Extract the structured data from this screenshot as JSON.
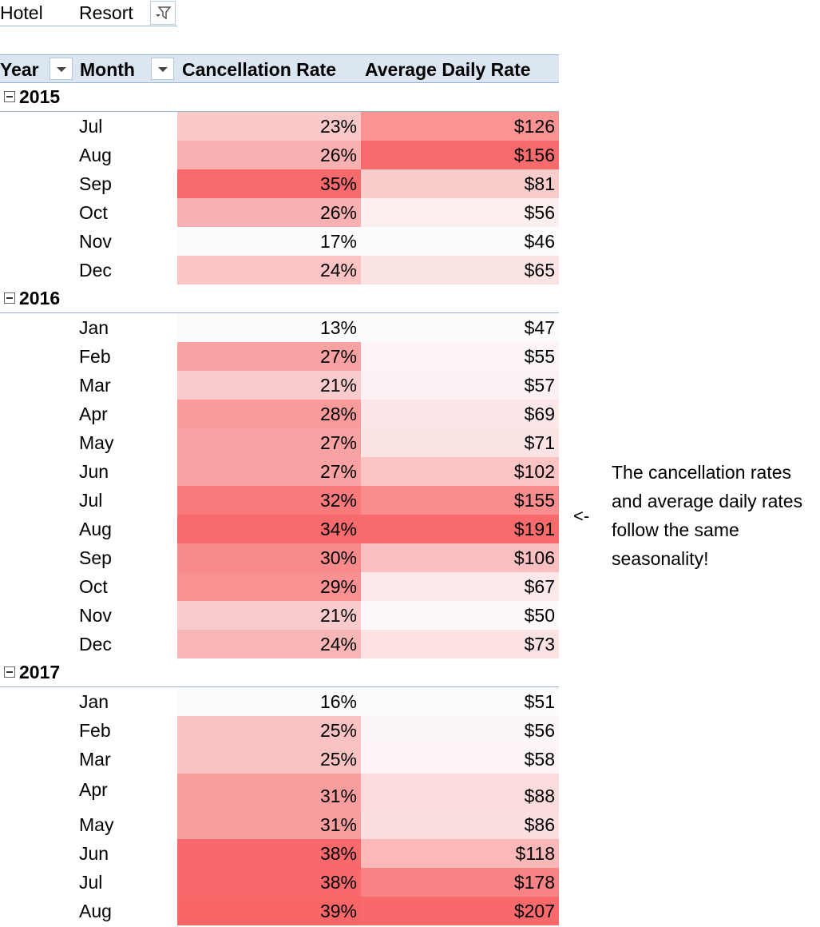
{
  "filter": {
    "field_label": "Hotel",
    "selected_value": "Resort"
  },
  "headers": {
    "year": "Year",
    "month": "Month",
    "cancellation_rate": "Cancellation Rate",
    "average_daily_rate": "Average Daily Rate"
  },
  "years": [
    {
      "year": "2015",
      "rows": [
        {
          "month": "Jul",
          "rate": "23%",
          "adr": "$126",
          "rate_bg": "#f9c9c9",
          "adr_bg": "#fa9393"
        },
        {
          "month": "Aug",
          "rate": "26%",
          "adr": "$156",
          "rate_bg": "#f9b0b1",
          "adr_bg": "#f86b6c"
        },
        {
          "month": "Sep",
          "rate": "35%",
          "adr": "$81",
          "rate_bg": "#f86b6d",
          "adr_bg": "#facdcd"
        },
        {
          "month": "Oct",
          "rate": "26%",
          "adr": "$56",
          "rate_bg": "#f9b0b1",
          "adr_bg": "#fcefef"
        },
        {
          "month": "Nov",
          "rate": "17%",
          "adr": "$46",
          "rate_bg": "#fcfcff",
          "adr_bg": "#fcfcff"
        },
        {
          "month": "Dec",
          "rate": "24%",
          "adr": "$65",
          "rate_bg": "#fac3c4",
          "adr_bg": "#fce4e5"
        }
      ]
    },
    {
      "year": "2016",
      "rows": [
        {
          "month": "Jan",
          "rate": "13%",
          "adr": "$47",
          "rate_bg": "#fcfcff",
          "adr_bg": "#fcfcff"
        },
        {
          "month": "Feb",
          "rate": "27%",
          "adr": "$55",
          "rate_bg": "#f9a2a3",
          "adr_bg": "#fcf4f5"
        },
        {
          "month": "Mar",
          "rate": "21%",
          "adr": "$57",
          "rate_bg": "#facbcc",
          "adr_bg": "#fcf2f3"
        },
        {
          "month": "Apr",
          "rate": "28%",
          "adr": "$69",
          "rate_bg": "#f99a9b",
          "adr_bg": "#fce6e7"
        },
        {
          "month": "May",
          "rate": "27%",
          "adr": "$71",
          "rate_bg": "#f9a2a3",
          "adr_bg": "#fce4e5"
        },
        {
          "month": "Jun",
          "rate": "27%",
          "adr": "$102",
          "rate_bg": "#f9a2a3",
          "adr_bg": "#fac4c5"
        },
        {
          "month": "Jul",
          "rate": "32%",
          "adr": "$155",
          "rate_bg": "#f87a7b",
          "adr_bg": "#f98d8e"
        },
        {
          "month": "Aug",
          "rate": "34%",
          "adr": "$191",
          "rate_bg": "#f86b6d",
          "adr_bg": "#f86b6c"
        },
        {
          "month": "Sep",
          "rate": "30%",
          "adr": "$106",
          "rate_bg": "#f88a8b",
          "adr_bg": "#fac0c1"
        },
        {
          "month": "Oct",
          "rate": "29%",
          "adr": "$67",
          "rate_bg": "#f99192",
          "adr_bg": "#fce8e9"
        },
        {
          "month": "Nov",
          "rate": "21%",
          "adr": "$50",
          "rate_bg": "#facbcc",
          "adr_bg": "#fcf8fb"
        },
        {
          "month": "Dec",
          "rate": "24%",
          "adr": "$73",
          "rate_bg": "#f9b6b7",
          "adr_bg": "#fce2e3"
        }
      ]
    },
    {
      "year": "2017",
      "rows": [
        {
          "month": "Jan",
          "rate": "16%",
          "adr": "$51",
          "rate_bg": "#fcfcff",
          "adr_bg": "#fcfcff",
          "tall": false
        },
        {
          "month": "Feb",
          "rate": "25%",
          "adr": "$56",
          "rate_bg": "#fac2c3",
          "adr_bg": "#fcf6f8",
          "tall": false
        },
        {
          "month": "Mar",
          "rate": "25%",
          "adr": "$58",
          "rate_bg": "#fac2c3",
          "adr_bg": "#fcf4f6",
          "tall": false
        },
        {
          "month": "Apr",
          "rate": "31%",
          "adr": "$88",
          "rate_bg": "#f99e9f",
          "adr_bg": "#fbdcdd",
          "tall": true
        },
        {
          "month": "May",
          "rate": "31%",
          "adr": "$86",
          "rate_bg": "#f99e9f",
          "adr_bg": "#fbdedf",
          "tall": false
        },
        {
          "month": "Jun",
          "rate": "38%",
          "adr": "$118",
          "rate_bg": "#f8696b",
          "adr_bg": "#fab8b9",
          "tall": false
        },
        {
          "month": "Jul",
          "rate": "38%",
          "adr": "$178",
          "rate_bg": "#f8696b",
          "adr_bg": "#f88384",
          "tall": false
        },
        {
          "month": "Aug",
          "rate": "39%",
          "adr": "$207",
          "rate_bg": "#f86668",
          "adr_bg": "#f8696b",
          "tall": false
        }
      ]
    }
  ],
  "annotation": {
    "arrow": "<-",
    "lines": [
      "The cancellation rates",
      "and average daily rates",
      "follow the same",
      "seasonality!"
    ]
  }
}
